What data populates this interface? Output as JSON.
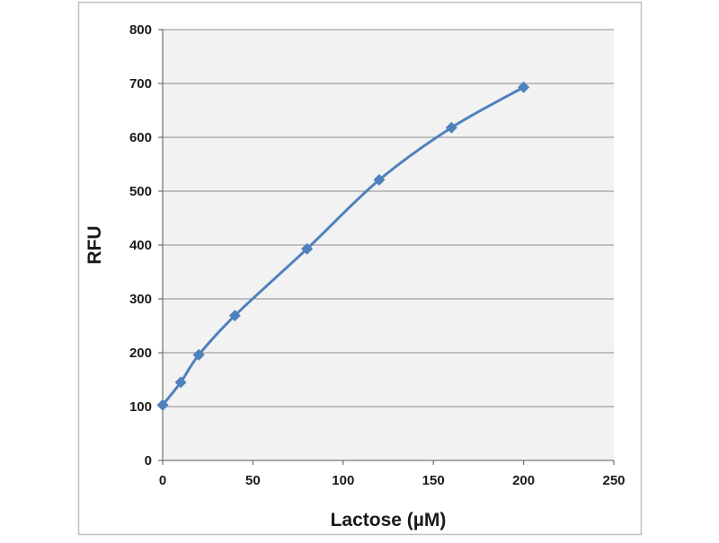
{
  "chart_data": {
    "type": "line",
    "title": "",
    "xlabel": "Lactose (µM)",
    "ylabel": "RFU",
    "xlim": [
      0,
      250
    ],
    "ylim": [
      0,
      800
    ],
    "xticks": [
      0,
      50,
      100,
      150,
      200,
      250
    ],
    "yticks": [
      0,
      100,
      200,
      300,
      400,
      500,
      600,
      700,
      800
    ],
    "grid": true,
    "legend": "none",
    "series": [
      {
        "color": "#4f81bd",
        "marker": "diamond",
        "x": [
          0,
          10,
          20,
          40,
          80,
          120,
          160,
          200
        ],
        "y": [
          103,
          145,
          196,
          269,
          393,
          521,
          618,
          693
        ]
      }
    ],
    "colors": {
      "plot_background": "#f2f2f2",
      "gridline": "#8c8c8c",
      "frame_border": "#bfbfbf",
      "series": "#4f81bd"
    }
  }
}
